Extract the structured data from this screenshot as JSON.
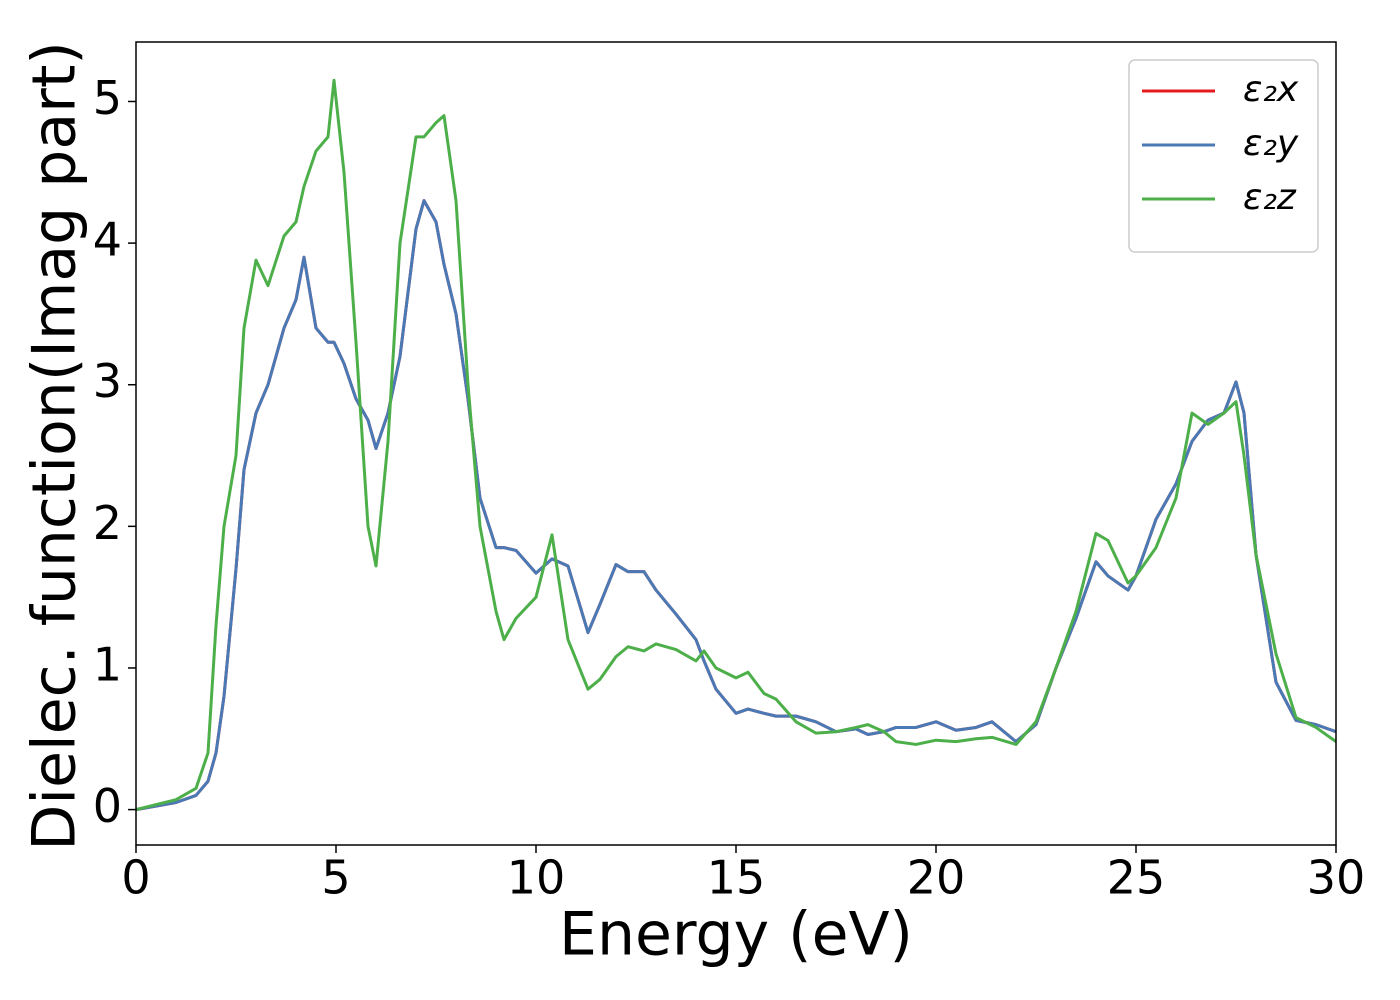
{
  "chart_data": {
    "type": "line",
    "xlabel": "Energy (eV)",
    "ylabel": "Dielec. function(Imag part)",
    "x": [
      0,
      1,
      1.5,
      1.8,
      2,
      2.2,
      2.5,
      2.7,
      3,
      3.3,
      3.7,
      4,
      4.2,
      4.5,
      4.8,
      4.95,
      5.2,
      5.5,
      5.8,
      6,
      6.3,
      6.6,
      7,
      7.2,
      7.5,
      7.7,
      8,
      8.3,
      8.6,
      9,
      9.2,
      9.5,
      10,
      10.4,
      10.8,
      11.3,
      11.6,
      12,
      12.3,
      12.7,
      13,
      13.5,
      14,
      14.2,
      14.5,
      15,
      15.3,
      15.7,
      16,
      16.5,
      17,
      17.5,
      18,
      18.3,
      18.7,
      19,
      19.5,
      20,
      20.5,
      21,
      21.4,
      22,
      22.5,
      23,
      23.5,
      24,
      24.3,
      24.8,
      25,
      25.5,
      26,
      26.4,
      26.8,
      27.2,
      27.5,
      27.7,
      28,
      28.5,
      29,
      29.5,
      30
    ],
    "series": [
      {
        "name": "ε₂x",
        "color": "#e41a1c",
        "values": [
          0,
          0.05,
          0.1,
          0.2,
          0.4,
          0.8,
          1.7,
          2.4,
          2.8,
          3.0,
          3.4,
          3.6,
          3.9,
          3.4,
          3.3,
          3.3,
          3.15,
          2.9,
          2.75,
          2.55,
          2.8,
          3.2,
          4.1,
          4.3,
          4.15,
          3.85,
          3.5,
          2.9,
          2.2,
          1.85,
          1.85,
          1.83,
          1.67,
          1.77,
          1.72,
          1.25,
          1.45,
          1.73,
          1.68,
          1.68,
          1.55,
          1.38,
          1.2,
          1.05,
          0.85,
          0.68,
          0.71,
          0.68,
          0.66,
          0.66,
          0.62,
          0.55,
          0.57,
          0.53,
          0.55,
          0.58,
          0.58,
          0.62,
          0.56,
          0.58,
          0.62,
          0.48,
          0.6,
          1.0,
          1.35,
          1.75,
          1.65,
          1.55,
          1.65,
          2.05,
          2.3,
          2.6,
          2.75,
          2.8,
          3.02,
          2.8,
          1.8,
          0.9,
          0.63,
          0.6,
          0.55
        ]
      },
      {
        "name": "ε₂y",
        "color": "#4a7ab5",
        "values": [
          0,
          0.05,
          0.1,
          0.2,
          0.4,
          0.8,
          1.7,
          2.4,
          2.8,
          3.0,
          3.4,
          3.6,
          3.9,
          3.4,
          3.3,
          3.3,
          3.15,
          2.9,
          2.75,
          2.55,
          2.8,
          3.2,
          4.1,
          4.3,
          4.15,
          3.85,
          3.5,
          2.9,
          2.2,
          1.85,
          1.85,
          1.83,
          1.67,
          1.77,
          1.72,
          1.25,
          1.45,
          1.73,
          1.68,
          1.68,
          1.55,
          1.38,
          1.2,
          1.05,
          0.85,
          0.68,
          0.71,
          0.68,
          0.66,
          0.66,
          0.62,
          0.55,
          0.57,
          0.53,
          0.55,
          0.58,
          0.58,
          0.62,
          0.56,
          0.58,
          0.62,
          0.48,
          0.6,
          1.0,
          1.35,
          1.75,
          1.65,
          1.55,
          1.65,
          2.05,
          2.3,
          2.6,
          2.75,
          2.8,
          3.02,
          2.8,
          1.8,
          0.9,
          0.63,
          0.6,
          0.55
        ]
      },
      {
        "name": "ε₂z",
        "color": "#4daf4a",
        "values": [
          0,
          0.07,
          0.15,
          0.4,
          1.3,
          2.0,
          2.5,
          3.4,
          3.88,
          3.7,
          4.05,
          4.15,
          4.4,
          4.65,
          4.75,
          5.15,
          4.5,
          3.3,
          2.0,
          1.72,
          2.6,
          4.0,
          4.75,
          4.75,
          4.85,
          4.9,
          4.3,
          3.0,
          2.0,
          1.4,
          1.2,
          1.35,
          1.5,
          1.94,
          1.2,
          0.85,
          0.92,
          1.08,
          1.15,
          1.12,
          1.17,
          1.13,
          1.05,
          1.12,
          1.0,
          0.93,
          0.97,
          0.82,
          0.78,
          0.62,
          0.54,
          0.55,
          0.58,
          0.6,
          0.55,
          0.48,
          0.46,
          0.49,
          0.48,
          0.5,
          0.51,
          0.46,
          0.62,
          1.0,
          1.4,
          1.95,
          1.9,
          1.6,
          1.65,
          1.85,
          2.2,
          2.8,
          2.72,
          2.8,
          2.88,
          2.5,
          1.8,
          1.1,
          0.65,
          0.58,
          0.48
        ]
      }
    ],
    "xlim": [
      0,
      30
    ],
    "xticks": [
      0,
      5,
      10,
      15,
      20,
      25,
      30
    ],
    "ylim": [
      -0.25,
      5.42
    ],
    "yticks": [
      0,
      1,
      2,
      3,
      4,
      5
    ],
    "legend": "upper right"
  }
}
